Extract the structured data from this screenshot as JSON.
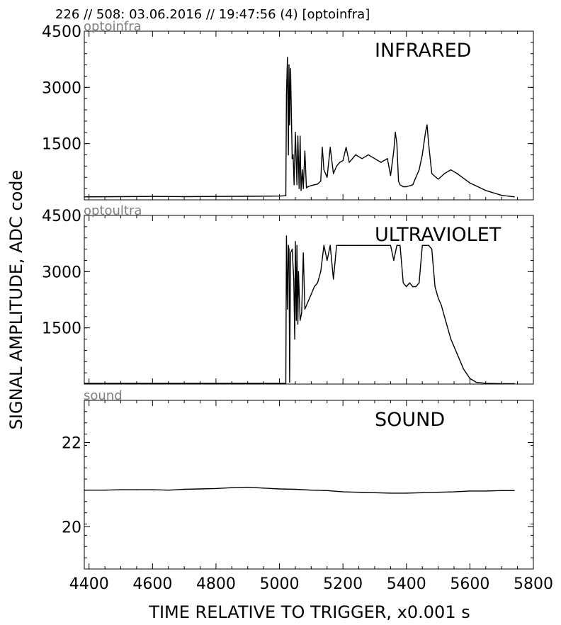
{
  "header": "226 // 508:   03.06.2016 // 19:47:56 (4)  [optoinfra]",
  "xlabel": "TIME RELATIVE TO TRIGGER,   x0.001 s",
  "ylabel": "SIGNAL AMPLITUDE,  ADC code",
  "chart_data": [
    {
      "type": "line",
      "tag": "optoinfra",
      "title": "INFRARED",
      "xlim": [
        4385,
        5800
      ],
      "ylim": [
        0,
        4500
      ],
      "yticks": [
        1500,
        3000,
        4500
      ],
      "xticks": [
        4400,
        4600,
        4800,
        5000,
        5200,
        5400,
        5600,
        5800
      ],
      "series": [
        {
          "x": [
            4385,
            4500,
            4600,
            4700,
            4800,
            4900,
            5000,
            5020,
            5022,
            5025,
            5028,
            5030,
            5032,
            5035,
            5040,
            5043,
            5046,
            5050,
            5055,
            5058,
            5062,
            5065,
            5068,
            5072,
            5075,
            5080,
            5085,
            5090,
            5100,
            5110,
            5120,
            5130,
            5135,
            5140,
            5150,
            5160,
            5170,
            5180,
            5190,
            5200,
            5210,
            5220,
            5240,
            5260,
            5280,
            5300,
            5320,
            5340,
            5350,
            5360,
            5365,
            5370,
            5375,
            5380,
            5390,
            5400,
            5420,
            5440,
            5450,
            5460,
            5465,
            5470,
            5480,
            5500,
            5520,
            5540,
            5560,
            5600,
            5650,
            5700,
            5740
          ],
          "y": [
            80,
            85,
            90,
            85,
            90,
            95,
            100,
            110,
            2800,
            3800,
            1200,
            3600,
            2000,
            3500,
            1100,
            1200,
            400,
            1800,
            400,
            1700,
            300,
            1700,
            250,
            800,
            300,
            1300,
            320,
            350,
            380,
            400,
            420,
            500,
            1400,
            800,
            600,
            1400,
            700,
            900,
            1000,
            1050,
            1400,
            1000,
            1200,
            1100,
            1200,
            1100,
            1000,
            1100,
            650,
            1300,
            1800,
            1500,
            500,
            400,
            350,
            350,
            400,
            800,
            1200,
            1800,
            2000,
            1500,
            700,
            550,
            700,
            800,
            700,
            450,
            250,
            120,
            80
          ]
        }
      ]
    },
    {
      "type": "line",
      "tag": "optoultra",
      "title": "ULTRAVIOLET",
      "xlim": [
        4385,
        5800
      ],
      "ylim": [
        0,
        4500
      ],
      "yticks": [
        1500,
        3000,
        4500
      ],
      "xticks": [
        4400,
        4600,
        4800,
        5000,
        5200,
        5400,
        5600,
        5800
      ],
      "series": [
        {
          "x": [
            4385,
            4500,
            4600,
            4700,
            4800,
            4900,
            5000,
            5020,
            5022,
            5025,
            5028,
            5030,
            5032,
            5035,
            5040,
            5045,
            5048,
            5050,
            5053,
            5055,
            5058,
            5060,
            5065,
            5070,
            5075,
            5080,
            5090,
            5100,
            5110,
            5120,
            5130,
            5140,
            5150,
            5160,
            5170,
            5180,
            5190,
            5200,
            5250,
            5300,
            5350,
            5360,
            5370,
            5380,
            5390,
            5400,
            5410,
            5420,
            5430,
            5440,
            5450,
            5470,
            5480,
            5490,
            5500,
            5510,
            5520,
            5540,
            5560,
            5580,
            5600,
            5620,
            5650,
            5700,
            5740
          ],
          "y": [
            20,
            20,
            20,
            20,
            20,
            20,
            20,
            20,
            3950,
            2000,
            3700,
            3600,
            50,
            3500,
            3600,
            2800,
            1200,
            3800,
            1700,
            3700,
            1600,
            3000,
            1700,
            1900,
            3500,
            2000,
            2200,
            2400,
            2600,
            2700,
            3000,
            3700,
            3300,
            3700,
            2800,
            3700,
            3700,
            3700,
            3700,
            3700,
            3700,
            3300,
            3700,
            3700,
            2700,
            2600,
            2700,
            2600,
            2600,
            2700,
            3700,
            3700,
            3600,
            2600,
            2300,
            2100,
            1800,
            1200,
            800,
            400,
            150,
            50,
            20,
            10,
            10
          ]
        }
      ]
    },
    {
      "type": "line",
      "tag": "sound",
      "title": "SOUND",
      "xlim": [
        4385,
        5800
      ],
      "ylim": [
        19,
        23
      ],
      "yticks": [
        20,
        22
      ],
      "xticks": [
        4400,
        4600,
        4800,
        5000,
        5200,
        5400,
        5600,
        5800
      ],
      "series": [
        {
          "x": [
            4385,
            4450,
            4500,
            4550,
            4600,
            4650,
            4700,
            4750,
            4800,
            4850,
            4900,
            4950,
            5000,
            5050,
            5100,
            5150,
            5200,
            5250,
            5300,
            5350,
            5400,
            5450,
            5500,
            5550,
            5600,
            5650,
            5700,
            5740
          ],
          "y": [
            20.87,
            20.87,
            20.88,
            20.88,
            20.88,
            20.87,
            20.89,
            20.9,
            20.91,
            20.93,
            20.94,
            20.92,
            20.9,
            20.89,
            20.87,
            20.86,
            20.83,
            20.82,
            20.81,
            20.8,
            20.8,
            20.81,
            20.82,
            20.83,
            20.85,
            20.85,
            20.86,
            20.86
          ]
        }
      ]
    }
  ]
}
